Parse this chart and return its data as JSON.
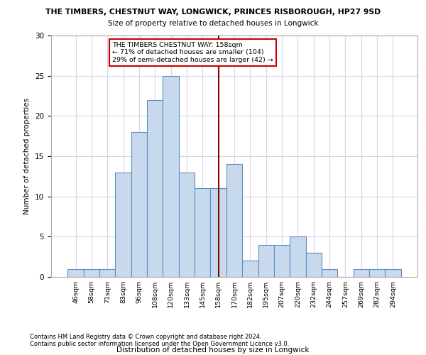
{
  "title_line1": "THE TIMBERS, CHESTNUT WAY, LONGWICK, PRINCES RISBOROUGH, HP27 9SD",
  "title_line2": "Size of property relative to detached houses in Longwick",
  "xlabel": "Distribution of detached houses by size in Longwick",
  "ylabel": "Number of detached properties",
  "footer_line1": "Contains HM Land Registry data © Crown copyright and database right 2024.",
  "footer_line2": "Contains public sector information licensed under the Open Government Licence v3.0.",
  "categories": [
    "46sqm",
    "58sqm",
    "71sqm",
    "83sqm",
    "96sqm",
    "108sqm",
    "120sqm",
    "133sqm",
    "145sqm",
    "158sqm",
    "170sqm",
    "182sqm",
    "195sqm",
    "207sqm",
    "220sqm",
    "232sqm",
    "244sqm",
    "257sqm",
    "269sqm",
    "282sqm",
    "294sqm"
  ],
  "values": [
    1,
    1,
    1,
    13,
    18,
    22,
    25,
    13,
    11,
    11,
    14,
    2,
    4,
    4,
    5,
    3,
    1,
    0,
    1,
    1,
    1
  ],
  "bar_color": "#c9d9ed",
  "bar_edge_color": "#5a8fc3",
  "vline_index": 9,
  "vline_color": "#8b0000",
  "annotation_text": "THE TIMBERS CHESTNUT WAY: 158sqm\n← 71% of detached houses are smaller (104)\n29% of semi-detached houses are larger (42) →",
  "annotation_box_color": "#ffffff",
  "annotation_box_edge": "#cc0000",
  "ylim": [
    0,
    30
  ],
  "yticks": [
    0,
    5,
    10,
    15,
    20,
    25,
    30
  ],
  "grid_color": "#d0d8e8",
  "background_color": "#ffffff"
}
